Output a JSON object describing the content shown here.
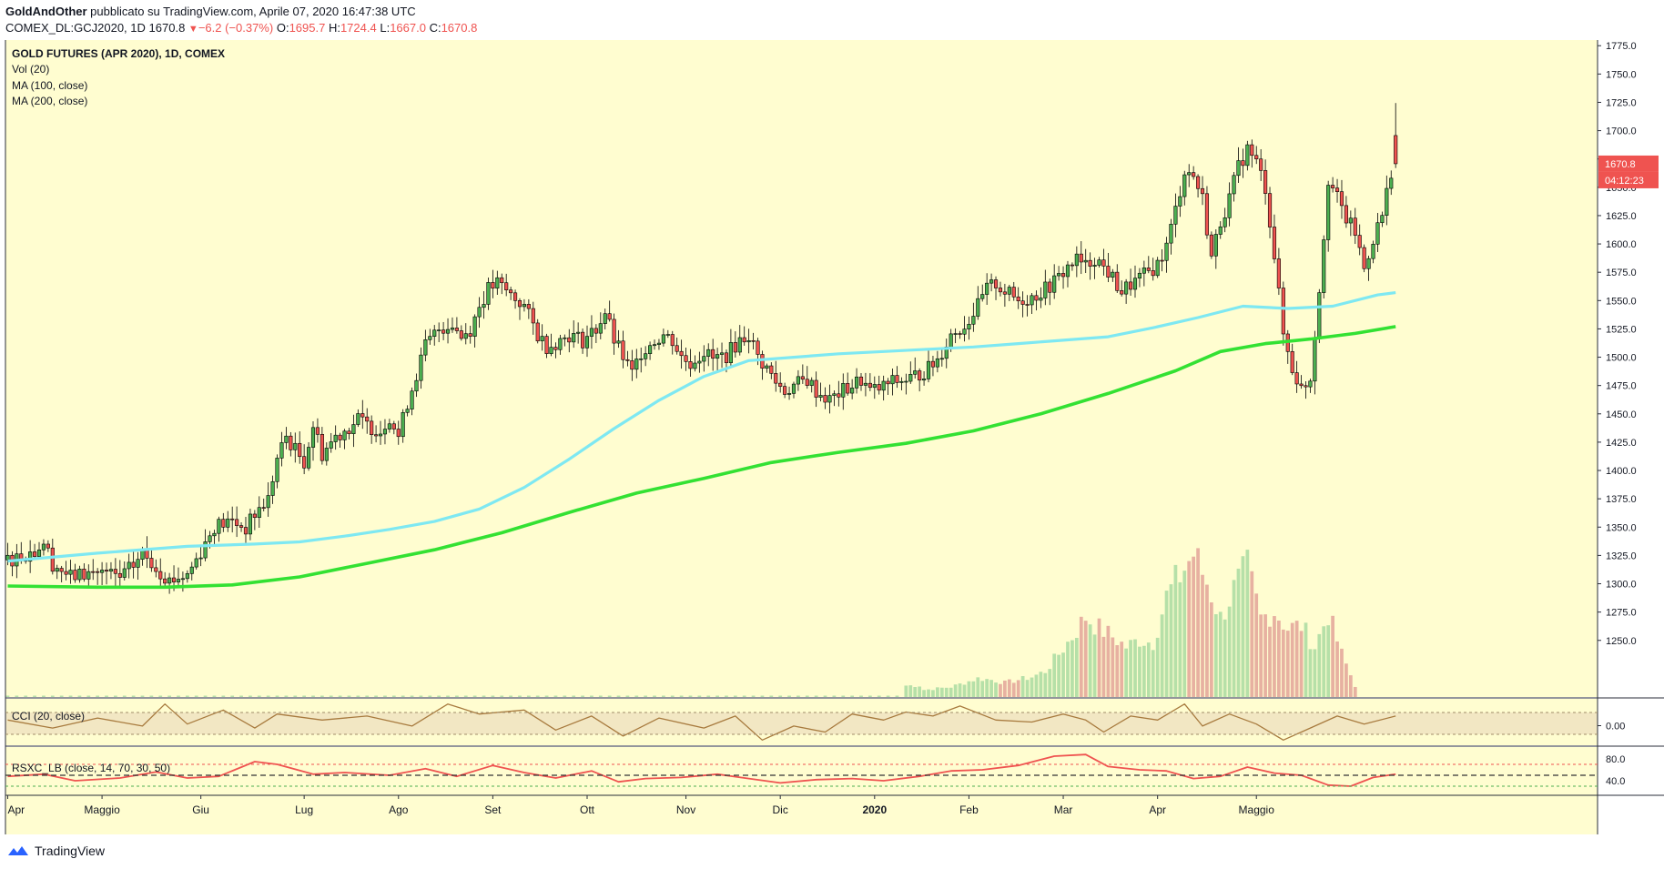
{
  "header": {
    "publisher_name": "GoldAndOther",
    "publisher_text": "pubblicato su TradingView.com, Aprile 07, 2020 16:47:38 UTC",
    "symbol_line": "COMEX_DL:GCJ2020, 1D",
    "last_value": "1670.8",
    "change_arrow": "▼",
    "change_text": "−6.2 (−0.37%)",
    "o_label": "O:",
    "o_value": "1695.7",
    "h_label": "H:",
    "h_value": "1724.4",
    "l_label": "L:",
    "l_value": "1667.0",
    "c_label": "C:",
    "c_value": "1670.8"
  },
  "legend": {
    "title": "GOLD FUTURES (APR 2020), 1D, COMEX",
    "vol": "Vol (20)",
    "ma100": "MA (100, close)",
    "ma200": "MA (200, close)",
    "cci": "CCI (20, close)",
    "rsx": "RSXC_LB (close, 14, 70, 30, 50)"
  },
  "footer": {
    "brand": "TradingView",
    "logo_icon": "tradingview-logo-icon"
  },
  "colors": {
    "background": "#fffdd0",
    "up": "#4caf50",
    "down": "#ef5350",
    "ma100": "#7ee8f2",
    "ma200": "#33e133",
    "cci": "#a87b3f",
    "rsx": "#ef5350",
    "vol_up": "#b6e0a8",
    "vol_down": "#e7b1a1"
  },
  "chart_data": [
    {
      "type": "candlestick",
      "title": "GOLD FUTURES (APR 2020), 1D, COMEX",
      "ylim": [
        1200,
        1780
      ],
      "yticks": [
        1250,
        1275,
        1300,
        1325,
        1350,
        1375,
        1400,
        1425,
        1450,
        1475,
        1500,
        1525,
        1550,
        1575,
        1600,
        1625,
        1650,
        1675,
        1700,
        1725,
        1750,
        1775
      ],
      "x_labels": [
        "Apr",
        "Maggio",
        "Giu",
        "Lug",
        "Ago",
        "Set",
        "Ott",
        "Nov",
        "Dic",
        "2020",
        "Feb",
        "Mar",
        "Apr",
        "Maggio"
      ],
      "price_badge": "1670.8",
      "countdown_badge": "04:12:23",
      "last_close": 1670.8,
      "last_open": 1695.7,
      "last_high": 1724.4,
      "last_low": 1667.0,
      "close_path": [
        [
          0,
          1321
        ],
        [
          6,
          1329
        ],
        [
          8,
          1337
        ],
        [
          10,
          1318
        ],
        [
          14,
          1306
        ],
        [
          20,
          1311
        ],
        [
          25,
          1305
        ],
        [
          28,
          1316
        ],
        [
          30,
          1327
        ],
        [
          33,
          1315
        ],
        [
          36,
          1303
        ],
        [
          40,
          1308
        ],
        [
          43,
          1329
        ],
        [
          46,
          1351
        ],
        [
          50,
          1355
        ],
        [
          53,
          1349
        ],
        [
          55,
          1361
        ],
        [
          58,
          1375
        ],
        [
          60,
          1410
        ],
        [
          62,
          1430
        ],
        [
          64,
          1418
        ],
        [
          66,
          1408
        ],
        [
          68,
          1440
        ],
        [
          70,
          1415
        ],
        [
          73,
          1430
        ],
        [
          76,
          1438
        ],
        [
          78,
          1445
        ],
        [
          80,
          1440
        ],
        [
          83,
          1435
        ],
        [
          85,
          1448
        ],
        [
          87,
          1430
        ],
        [
          89,
          1460
        ],
        [
          91,
          1485
        ],
        [
          93,
          1510
        ],
        [
          96,
          1525
        ],
        [
          99,
          1530
        ],
        [
          101,
          1518
        ],
        [
          103,
          1525
        ],
        [
          105,
          1545
        ],
        [
          107,
          1560
        ],
        [
          109,
          1565
        ],
        [
          112,
          1555
        ],
        [
          115,
          1545
        ],
        [
          118,
          1520
        ],
        [
          120,
          1510
        ],
        [
          123,
          1515
        ],
        [
          125,
          1520
        ],
        [
          128,
          1515
        ],
        [
          131,
          1525
        ],
        [
          133,
          1540
        ],
        [
          135,
          1515
        ],
        [
          137,
          1500
        ],
        [
          139,
          1485
        ],
        [
          141,
          1505
        ],
        [
          143,
          1512
        ],
        [
          146,
          1520
        ],
        [
          148,
          1515
        ],
        [
          150,
          1500
        ],
        [
          152,
          1495
        ],
        [
          155,
          1505
        ],
        [
          157,
          1498
        ],
        [
          160,
          1502
        ],
        [
          163,
          1515
        ],
        [
          165,
          1520
        ],
        [
          167,
          1500
        ],
        [
          169,
          1490
        ],
        [
          171,
          1478
        ],
        [
          173,
          1470
        ],
        [
          175,
          1475
        ],
        [
          178,
          1480
        ],
        [
          180,
          1470
        ],
        [
          183,
          1462
        ],
        [
          185,
          1468
        ],
        [
          188,
          1475
        ],
        [
          190,
          1480
        ],
        [
          192,
          1470
        ],
        [
          194,
          1472
        ],
        [
          197,
          1478
        ],
        [
          200,
          1480
        ],
        [
          203,
          1485
        ],
        [
          205,
          1490
        ],
        [
          207,
          1498
        ],
        [
          210,
          1520
        ],
        [
          213,
          1528
        ],
        [
          216,
          1545
        ],
        [
          218,
          1560
        ],
        [
          220,
          1565
        ],
        [
          222,
          1558
        ],
        [
          225,
          1550
        ],
        [
          228,
          1553
        ],
        [
          231,
          1560
        ],
        [
          234,
          1570
        ],
        [
          236,
          1580
        ],
        [
          238,
          1586
        ],
        [
          240,
          1580
        ],
        [
          242,
          1588
        ],
        [
          245,
          1575
        ],
        [
          248,
          1558
        ],
        [
          250,
          1564
        ],
        [
          253,
          1572
        ],
        [
          256,
          1582
        ],
        [
          258,
          1598
        ],
        [
          260,
          1630
        ],
        [
          262,
          1665
        ],
        [
          264,
          1660
        ],
        [
          266,
          1640
        ],
        [
          268,
          1588
        ],
        [
          270,
          1620
        ],
        [
          272,
          1640
        ],
        [
          274,
          1668
        ],
        [
          276,
          1684
        ],
        [
          278,
          1672
        ],
        [
          280,
          1650
        ],
        [
          282,
          1590
        ],
        [
          284,
          1520
        ],
        [
          286,
          1490
        ],
        [
          288,
          1472
        ],
        [
          290,
          1482
        ],
        [
          292,
          1560
        ],
        [
          294,
          1658
        ],
        [
          296,
          1640
        ],
        [
          298,
          1622
        ],
        [
          300,
          1610
        ],
        [
          302,
          1578
        ],
        [
          304,
          1605
        ],
        [
          306,
          1625
        ],
        [
          308,
          1665
        ],
        [
          309,
          1671
        ]
      ],
      "series": [
        {
          "name": "MA (100, close)",
          "points": [
            [
              0,
              1320
            ],
            [
              20,
              1327
            ],
            [
              40,
              1333
            ],
            [
              55,
              1335
            ],
            [
              65,
              1337
            ],
            [
              75,
              1342
            ],
            [
              85,
              1348
            ],
            [
              95,
              1355
            ],
            [
              105,
              1366
            ],
            [
              115,
              1385
            ],
            [
              125,
              1410
            ],
            [
              135,
              1437
            ],
            [
              145,
              1462
            ],
            [
              155,
              1483
            ],
            [
              165,
              1497
            ],
            [
              175,
              1500
            ],
            [
              185,
              1503
            ],
            [
              195,
              1505
            ],
            [
              205,
              1507
            ],
            [
              215,
              1509
            ],
            [
              225,
              1512
            ],
            [
              235,
              1515
            ],
            [
              245,
              1518
            ],
            [
              255,
              1526
            ],
            [
              265,
              1535
            ],
            [
              275,
              1545
            ],
            [
              285,
              1543
            ],
            [
              295,
              1545
            ],
            [
              305,
              1555
            ],
            [
              309,
              1557
            ]
          ]
        },
        {
          "name": "MA (200, close)",
          "points": [
            [
              0,
              1298
            ],
            [
              20,
              1297
            ],
            [
              35,
              1297
            ],
            [
              50,
              1299
            ],
            [
              65,
              1306
            ],
            [
              80,
              1318
            ],
            [
              95,
              1330
            ],
            [
              110,
              1345
            ],
            [
              125,
              1363
            ],
            [
              140,
              1380
            ],
            [
              155,
              1393
            ],
            [
              170,
              1407
            ],
            [
              185,
              1416
            ],
            [
              200,
              1424
            ],
            [
              215,
              1435
            ],
            [
              230,
              1450
            ],
            [
              245,
              1468
            ],
            [
              260,
              1488
            ],
            [
              270,
              1505
            ],
            [
              280,
              1512
            ],
            [
              290,
              1516
            ],
            [
              300,
              1521
            ],
            [
              309,
              1527
            ]
          ]
        }
      ],
      "volume": {
        "values": [
          [
            204,
            0.05
          ],
          [
            210,
            0.07
          ],
          [
            213,
            0.1
          ],
          [
            216,
            0.13
          ],
          [
            219,
            0.12
          ],
          [
            222,
            0.1
          ],
          [
            225,
            0.12
          ],
          [
            228,
            0.14
          ],
          [
            231,
            0.18
          ],
          [
            234,
            0.3
          ],
          [
            237,
            0.42
          ],
          [
            240,
            0.56
          ],
          [
            243,
            0.48
          ],
          [
            246,
            0.42
          ],
          [
            249,
            0.35
          ],
          [
            252,
            0.4
          ],
          [
            255,
            0.38
          ],
          [
            258,
            0.7
          ],
          [
            261,
            0.85
          ],
          [
            264,
            1.0
          ],
          [
            267,
            0.8
          ],
          [
            270,
            0.55
          ],
          [
            273,
            0.75
          ],
          [
            276,
            0.9
          ],
          [
            279,
            0.55
          ],
          [
            282,
            0.6
          ],
          [
            285,
            0.48
          ],
          [
            288,
            0.5
          ],
          [
            291,
            0.35
          ],
          [
            294,
            0.58
          ],
          [
            297,
            0.3
          ],
          [
            300,
            0.08
          ]
        ]
      }
    },
    {
      "type": "line",
      "name": "CCI (20, close)",
      "ytick": "0.00",
      "points": [
        [
          0,
          0.1
        ],
        [
          10,
          -0.3
        ],
        [
          20,
          0.2
        ],
        [
          30,
          -0.2
        ],
        [
          35,
          0.9
        ],
        [
          40,
          -0.1
        ],
        [
          48,
          0.6
        ],
        [
          55,
          -0.3
        ],
        [
          60,
          0.4
        ],
        [
          70,
          0.1
        ],
        [
          80,
          0.3
        ],
        [
          90,
          -0.2
        ],
        [
          98,
          0.9
        ],
        [
          105,
          0.4
        ],
        [
          115,
          0.6
        ],
        [
          122,
          -0.4
        ],
        [
          130,
          0.3
        ],
        [
          137,
          -0.7
        ],
        [
          145,
          0.2
        ],
        [
          155,
          -0.3
        ],
        [
          162,
          0.3
        ],
        [
          168,
          -0.9
        ],
        [
          175,
          -0.2
        ],
        [
          182,
          -0.5
        ],
        [
          188,
          0.4
        ],
        [
          195,
          0.1
        ],
        [
          200,
          0.5
        ],
        [
          206,
          0.3
        ],
        [
          212,
          0.8
        ],
        [
          220,
          0.1
        ],
        [
          228,
          0.0
        ],
        [
          235,
          0.4
        ],
        [
          240,
          0.1
        ],
        [
          244,
          -0.5
        ],
        [
          250,
          0.3
        ],
        [
          256,
          0.1
        ],
        [
          262,
          0.9
        ],
        [
          266,
          -0.2
        ],
        [
          272,
          0.4
        ],
        [
          278,
          -0.1
        ],
        [
          284,
          -0.9
        ],
        [
          290,
          -0.3
        ],
        [
          296,
          0.3
        ],
        [
          302,
          -0.1
        ],
        [
          309,
          0.3
        ]
      ]
    },
    {
      "type": "line",
      "name": "RSXC_LB (close, 14, 70, 30, 50)",
      "yticks": [
        "80.0",
        "40.0"
      ],
      "levels": [
        70,
        50,
        30
      ],
      "points": [
        [
          0,
          48
        ],
        [
          8,
          52
        ],
        [
          15,
          40
        ],
        [
          25,
          45
        ],
        [
          33,
          56
        ],
        [
          40,
          45
        ],
        [
          47,
          48
        ],
        [
          55,
          75
        ],
        [
          60,
          70
        ],
        [
          68,
          52
        ],
        [
          75,
          55
        ],
        [
          85,
          50
        ],
        [
          93,
          62
        ],
        [
          100,
          48
        ],
        [
          108,
          68
        ],
        [
          115,
          55
        ],
        [
          122,
          45
        ],
        [
          130,
          58
        ],
        [
          136,
          38
        ],
        [
          142,
          44
        ],
        [
          150,
          46
        ],
        [
          158,
          52
        ],
        [
          165,
          44
        ],
        [
          172,
          36
        ],
        [
          180,
          42
        ],
        [
          188,
          44
        ],
        [
          195,
          40
        ],
        [
          203,
          48
        ],
        [
          210,
          58
        ],
        [
          217,
          60
        ],
        [
          225,
          68
        ],
        [
          233,
          85
        ],
        [
          240,
          88
        ],
        [
          245,
          66
        ],
        [
          252,
          60
        ],
        [
          258,
          58
        ],
        [
          264,
          44
        ],
        [
          270,
          48
        ],
        [
          276,
          65
        ],
        [
          282,
          54
        ],
        [
          288,
          50
        ],
        [
          294,
          32
        ],
        [
          299,
          30
        ],
        [
          304,
          46
        ],
        [
          309,
          52
        ]
      ]
    }
  ]
}
